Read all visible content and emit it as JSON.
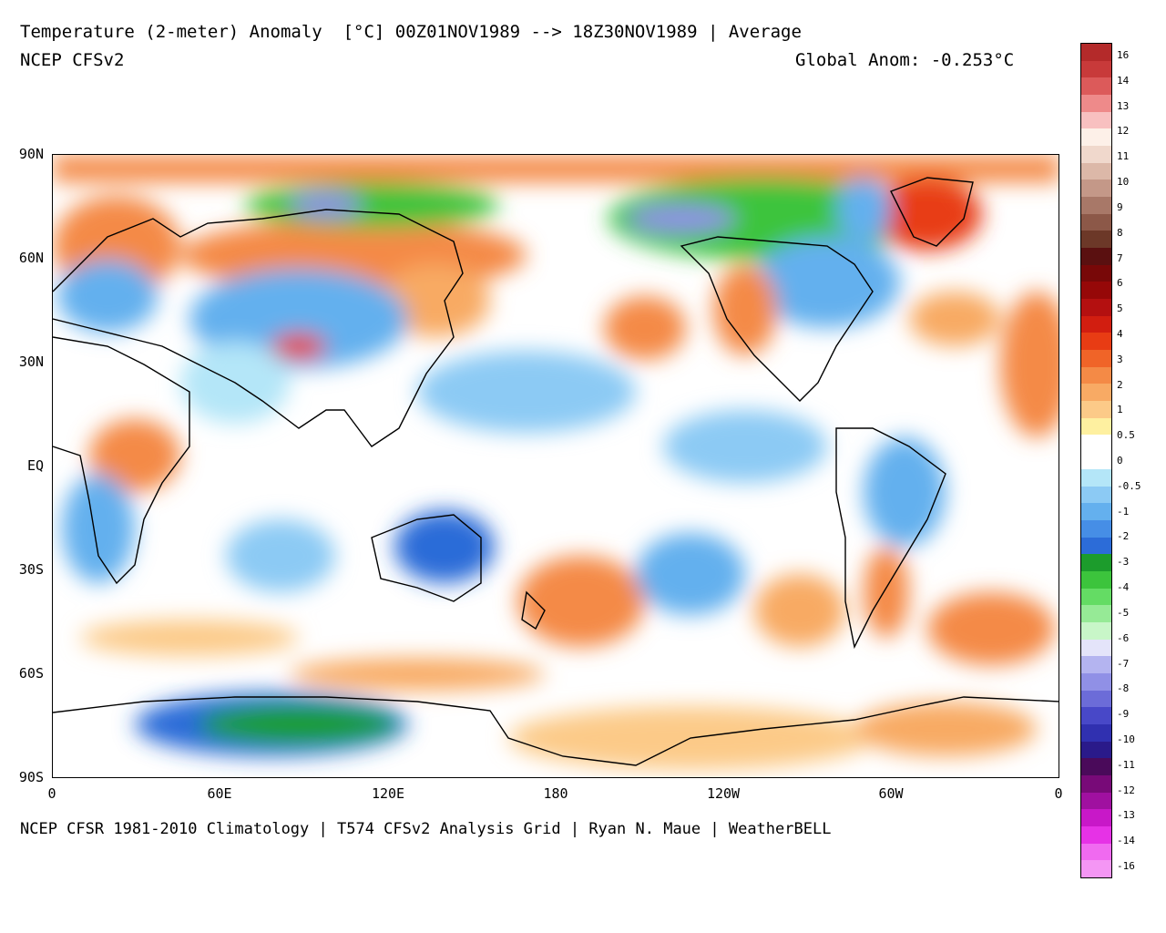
{
  "header": {
    "title": "Temperature (2-meter) Anomaly  [°C] 00Z01NOV1989 --> 18Z30NOV1989 | Average",
    "model": "NCEP CFSv2",
    "global_anom": "Global Anom: -0.253°C"
  },
  "footer": "NCEP CFSR 1981-2010 Climatology | T574 CFSv2 Analysis Grid | Ryan N. Maue | WeatherBELL",
  "axes": {
    "lat_labels": [
      "90N",
      "60N",
      "30N",
      "EQ",
      "30S",
      "60S",
      "90S"
    ],
    "lon_labels": [
      "0",
      "60E",
      "120E",
      "180",
      "120W",
      "60W",
      "0"
    ]
  },
  "colorbar": {
    "labels": [
      "16",
      "14",
      "13",
      "12",
      "11",
      "10",
      "9",
      "8",
      "7",
      "6",
      "5",
      "4",
      "3",
      "2",
      "1",
      "0.5",
      "0",
      "-0.5",
      "-1",
      "-2",
      "-3",
      "-4",
      "-5",
      "-6",
      "-7",
      "-8",
      "-9",
      "-10",
      "-11",
      "-12",
      "-13",
      "-14",
      "-16"
    ],
    "colors": [
      "#b42a2a",
      "#c83a3a",
      "#dc5a5a",
      "#ee8a8a",
      "#f8c0c0",
      "#fdf0e8",
      "#f0d8cc",
      "#dcb8a8",
      "#c49888",
      "#a87868",
      "#8c5848",
      "#6c3828",
      "#5a1010",
      "#780808",
      "#960808",
      "#b41010",
      "#d21e10",
      "#e83c14",
      "#f06428",
      "#f48a46",
      "#f8aa64",
      "#fcca88",
      "#fef0a0",
      "#ffffff",
      "#ffffff",
      "#b4e6f8",
      "#8ccaf4",
      "#64b0ee",
      "#468ee6",
      "#2c6cd8",
      "#1c9c2c",
      "#3cc43c",
      "#64dc64",
      "#96ea96",
      "#c8f6c8",
      "#e4e4fa",
      "#b4b4f0",
      "#9090e6",
      "#6c6cd8",
      "#4848c8",
      "#3030b0",
      "#2a1a8a",
      "#4a0a5a",
      "#780a78",
      "#a010a0",
      "#c818c8",
      "#e632e6",
      "#f06af0",
      "#f496f4"
    ]
  },
  "map_colors": {
    "ocean_neutral": "#ffffff",
    "warm_light": "#fcca88",
    "warm": "#f48a46",
    "warm_strong": "#e83c14",
    "cool_light": "#b4e6f8",
    "cool": "#64b0ee",
    "cool_strong": "#2c6cd8",
    "green": "#3cc43c",
    "green_dark": "#1c9c2c",
    "purple": "#9090e6"
  }
}
